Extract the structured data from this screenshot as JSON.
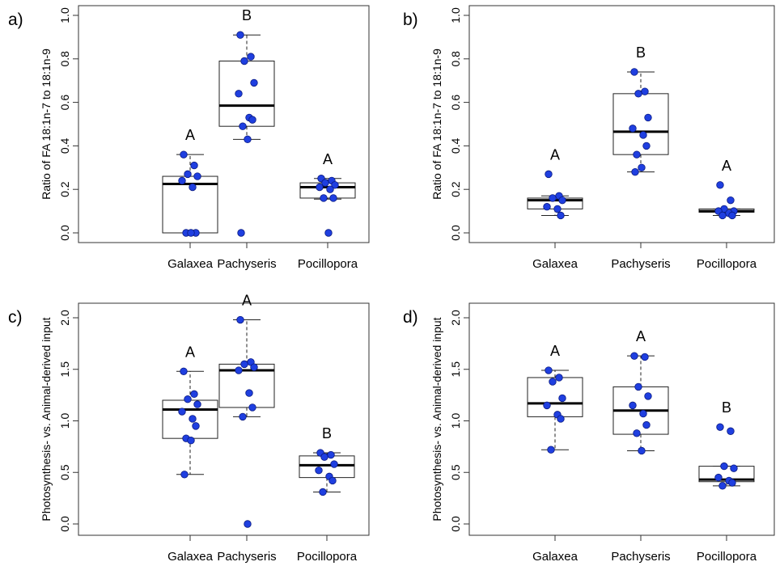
{
  "colors": {
    "point_fill": "#1f3fe0",
    "point_stroke": "#0a1a80",
    "box_stroke": "#222222"
  },
  "chart_data": [
    {
      "panel": "a)",
      "type": "box",
      "ylabel": "Ratio of FA 18:1n-7 to 18:1n-9",
      "ylim": [
        0.0,
        1.0
      ],
      "yticks": [
        "0.0",
        "0.2",
        "0.4",
        "0.6",
        "0.8",
        "1.0"
      ],
      "categories": [
        "Galaxea",
        "Pachyseris",
        "Pocillopora"
      ],
      "boxes": [
        {
          "min": 0.0,
          "q1": 0.0,
          "median": 0.225,
          "q3": 0.26,
          "max": 0.36
        },
        {
          "min": 0.43,
          "q1": 0.49,
          "median": 0.585,
          "q3": 0.79,
          "max": 0.91
        },
        {
          "min": 0.155,
          "q1": 0.16,
          "median": 0.21,
          "q3": 0.23,
          "max": 0.25
        }
      ],
      "points": [
        [
          0.36,
          0.31,
          0.27,
          0.26,
          0.24,
          0.21,
          0.0,
          0.0,
          0.0
        ],
        [
          0.91,
          0.81,
          0.79,
          0.69,
          0.64,
          0.53,
          0.52,
          0.49,
          0.43,
          0.0
        ],
        [
          0.25,
          0.24,
          0.23,
          0.22,
          0.21,
          0.2,
          0.16,
          0.16,
          0.0
        ]
      ],
      "letters": [
        "A",
        "B",
        "A"
      ]
    },
    {
      "panel": "b)",
      "type": "box",
      "ylabel": "Ratio of FA 18:1n-7 to 18:1n-9",
      "ylim": [
        0.0,
        1.0
      ],
      "yticks": [
        "0.0",
        "0.2",
        "0.4",
        "0.6",
        "0.8",
        "1.0"
      ],
      "categories": [
        "Galaxea",
        "Pachyseris",
        "Pocillopora"
      ],
      "boxes": [
        {
          "min": 0.08,
          "q1": 0.11,
          "median": 0.15,
          "q3": 0.16,
          "max": 0.17
        },
        {
          "min": 0.28,
          "q1": 0.36,
          "median": 0.465,
          "q3": 0.64,
          "max": 0.74
        },
        {
          "min": 0.08,
          "q1": 0.095,
          "median": 0.1,
          "q3": 0.11,
          "max": 0.11
        }
      ],
      "points": [
        [
          0.27,
          0.17,
          0.16,
          0.15,
          0.12,
          0.11,
          0.08
        ],
        [
          0.74,
          0.65,
          0.64,
          0.53,
          0.48,
          0.45,
          0.4,
          0.36,
          0.3,
          0.28
        ],
        [
          0.22,
          0.15,
          0.11,
          0.1,
          0.1,
          0.09,
          0.08,
          0.08
        ]
      ],
      "letters": [
        "A",
        "B",
        "A"
      ]
    },
    {
      "panel": "c)",
      "type": "box",
      "ylabel": "Photosynthesis- vs. Animal-derived input",
      "ylim": [
        0.0,
        2.0
      ],
      "yticks": [
        "0.0",
        "0.5",
        "1.0",
        "1.5",
        "2.0"
      ],
      "categories": [
        "Galaxea",
        "Pachyseris",
        "Pocillopora"
      ],
      "boxes": [
        {
          "min": 0.48,
          "q1": 0.83,
          "median": 1.11,
          "q3": 1.2,
          "max": 1.48
        },
        {
          "min": 1.04,
          "q1": 1.13,
          "median": 1.49,
          "q3": 1.55,
          "max": 1.98
        },
        {
          "min": 0.31,
          "q1": 0.45,
          "median": 0.57,
          "q3": 0.66,
          "max": 0.69
        }
      ],
      "points": [
        [
          1.48,
          1.26,
          1.21,
          1.16,
          1.09,
          1.02,
          0.95,
          0.83,
          0.81,
          0.48
        ],
        [
          1.98,
          1.57,
          1.55,
          1.52,
          1.49,
          1.27,
          1.13,
          1.04,
          0.0
        ],
        [
          0.69,
          0.67,
          0.65,
          0.58,
          0.52,
          0.46,
          0.42,
          0.31
        ]
      ],
      "letters": [
        "A",
        "A",
        "B"
      ]
    },
    {
      "panel": "d)",
      "type": "box",
      "ylabel": "Photosynthesis- vs. Animal-derived input",
      "ylim": [
        0.0,
        2.0
      ],
      "yticks": [
        "0.0",
        "0.5",
        "1.0",
        "1.5",
        "2.0"
      ],
      "categories": [
        "Galaxea",
        "Pachyseris",
        "Pocillopora"
      ],
      "boxes": [
        {
          "min": 0.72,
          "q1": 1.04,
          "median": 1.17,
          "q3": 1.42,
          "max": 1.49
        },
        {
          "min": 0.71,
          "q1": 0.87,
          "median": 1.1,
          "q3": 1.33,
          "max": 1.63
        },
        {
          "min": 0.37,
          "q1": 0.41,
          "median": 0.43,
          "q3": 0.56,
          "max": 0.56
        }
      ],
      "points": [
        [
          1.49,
          1.42,
          1.38,
          1.22,
          1.15,
          1.06,
          1.02,
          0.72
        ],
        [
          1.63,
          1.62,
          1.33,
          1.24,
          1.15,
          1.07,
          0.96,
          0.88,
          0.71
        ],
        [
          0.94,
          0.9,
          0.56,
          0.54,
          0.45,
          0.42,
          0.4,
          0.37
        ]
      ],
      "letters": [
        "A",
        "A",
        "B"
      ]
    }
  ]
}
